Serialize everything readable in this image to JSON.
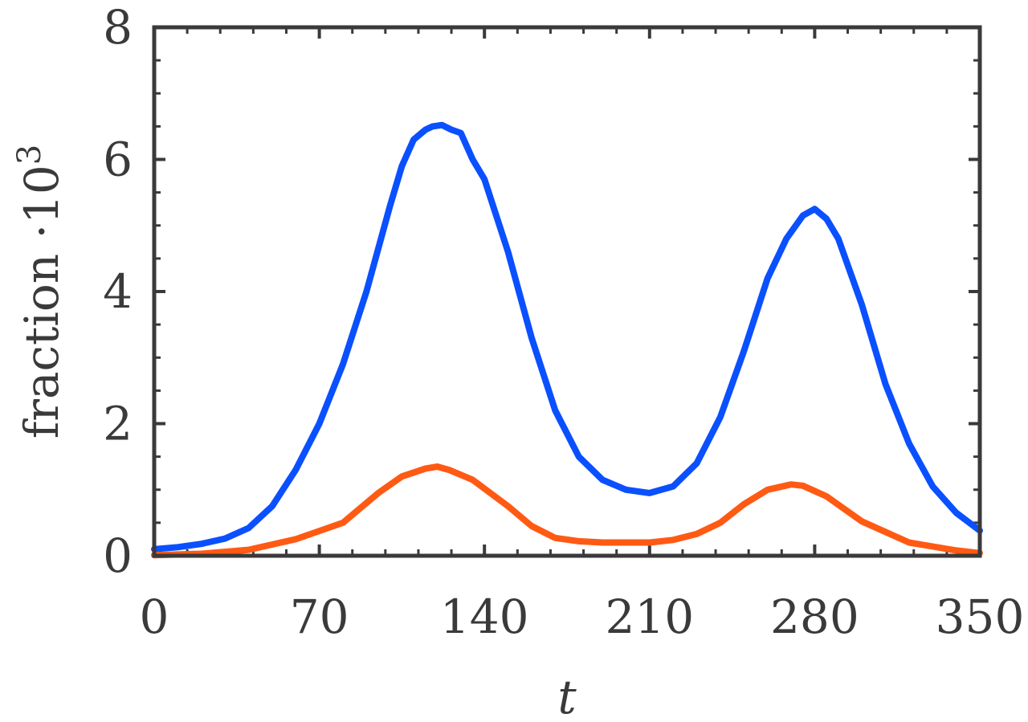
{
  "chart_data": {
    "type": "line",
    "title": "",
    "xlabel": "t",
    "ylabel": "fraction ·10",
    "ylabel_superscript": "3",
    "xlim": [
      0,
      350
    ],
    "ylim": [
      0,
      8
    ],
    "x_ticks": [
      0,
      70,
      140,
      210,
      280,
      350
    ],
    "y_ticks": [
      0,
      2,
      4,
      6,
      8
    ],
    "grid": false,
    "legend": "none",
    "series": [
      {
        "color": "#0a50ff",
        "x": [
          0,
          10,
          20,
          30,
          40,
          50,
          60,
          70,
          80,
          90,
          100,
          105,
          110,
          115,
          118,
          122,
          126,
          130,
          135,
          140,
          150,
          160,
          170,
          180,
          190,
          200,
          210,
          220,
          230,
          240,
          250,
          260,
          268,
          275,
          280,
          285,
          290,
          300,
          310,
          320,
          330,
          340,
          350
        ],
        "y": [
          0.1,
          0.13,
          0.18,
          0.26,
          0.42,
          0.75,
          1.3,
          2.0,
          2.9,
          4.0,
          5.3,
          5.9,
          6.3,
          6.45,
          6.5,
          6.52,
          6.45,
          6.4,
          6.0,
          5.7,
          4.6,
          3.3,
          2.2,
          1.5,
          1.15,
          1.0,
          0.95,
          1.05,
          1.4,
          2.1,
          3.1,
          4.2,
          4.8,
          5.15,
          5.25,
          5.1,
          4.8,
          3.8,
          2.6,
          1.7,
          1.05,
          0.65,
          0.38
        ]
      },
      {
        "color": "#ff5a14",
        "x": [
          0,
          20,
          40,
          60,
          80,
          95,
          105,
          115,
          120,
          125,
          135,
          150,
          160,
          170,
          180,
          190,
          200,
          210,
          220,
          230,
          240,
          250,
          260,
          270,
          275,
          285,
          300,
          320,
          340,
          350
        ],
        "y": [
          0.01,
          0.03,
          0.09,
          0.25,
          0.5,
          0.95,
          1.2,
          1.32,
          1.35,
          1.3,
          1.15,
          0.75,
          0.45,
          0.27,
          0.22,
          0.2,
          0.2,
          0.2,
          0.24,
          0.33,
          0.5,
          0.78,
          1.0,
          1.08,
          1.06,
          0.9,
          0.52,
          0.2,
          0.08,
          0.04
        ]
      }
    ]
  }
}
